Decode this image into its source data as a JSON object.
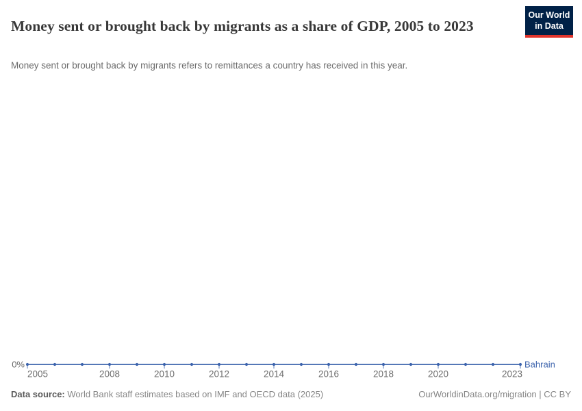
{
  "header": {
    "title": "Money sent or brought back by migrants as a share of GDP, 2005 to 2023",
    "subtitle": "Money sent or brought back by migrants refers to remittances a country has received in this year.",
    "logo": {
      "line1": "Our World",
      "line2": "in Data",
      "bg_color": "#002147",
      "bar_color": "#e0342c"
    }
  },
  "chart_data": {
    "type": "line",
    "title": "Money sent or brought back by migrants as a share of GDP, 2005 to 2023",
    "xlabel": "",
    "ylabel": "",
    "xlim": [
      2005,
      2023
    ],
    "ylim": [
      0,
      1
    ],
    "grid": false,
    "legend_position": "end-of-line-label",
    "x_ticks": [
      2005,
      2008,
      2010,
      2012,
      2014,
      2016,
      2018,
      2020,
      2023
    ],
    "y_ticks": [
      "0%"
    ],
    "series": [
      {
        "name": "Bahrain",
        "color": "#3d64ad",
        "x": [
          2005,
          2006,
          2007,
          2008,
          2009,
          2010,
          2011,
          2012,
          2013,
          2014,
          2015,
          2016,
          2017,
          2018,
          2019,
          2020,
          2021,
          2022,
          2023
        ],
        "values": [
          0,
          0,
          0,
          0,
          0,
          0,
          0,
          0,
          0,
          0,
          0,
          0,
          0,
          0,
          0,
          0,
          0,
          0,
          0
        ]
      }
    ]
  },
  "footer": {
    "source_label": "Data source:",
    "source_text": " World Bank staff estimates based on IMF and OECD data (2025)",
    "right_text": "OurWorldinData.org/migration | CC BY"
  }
}
